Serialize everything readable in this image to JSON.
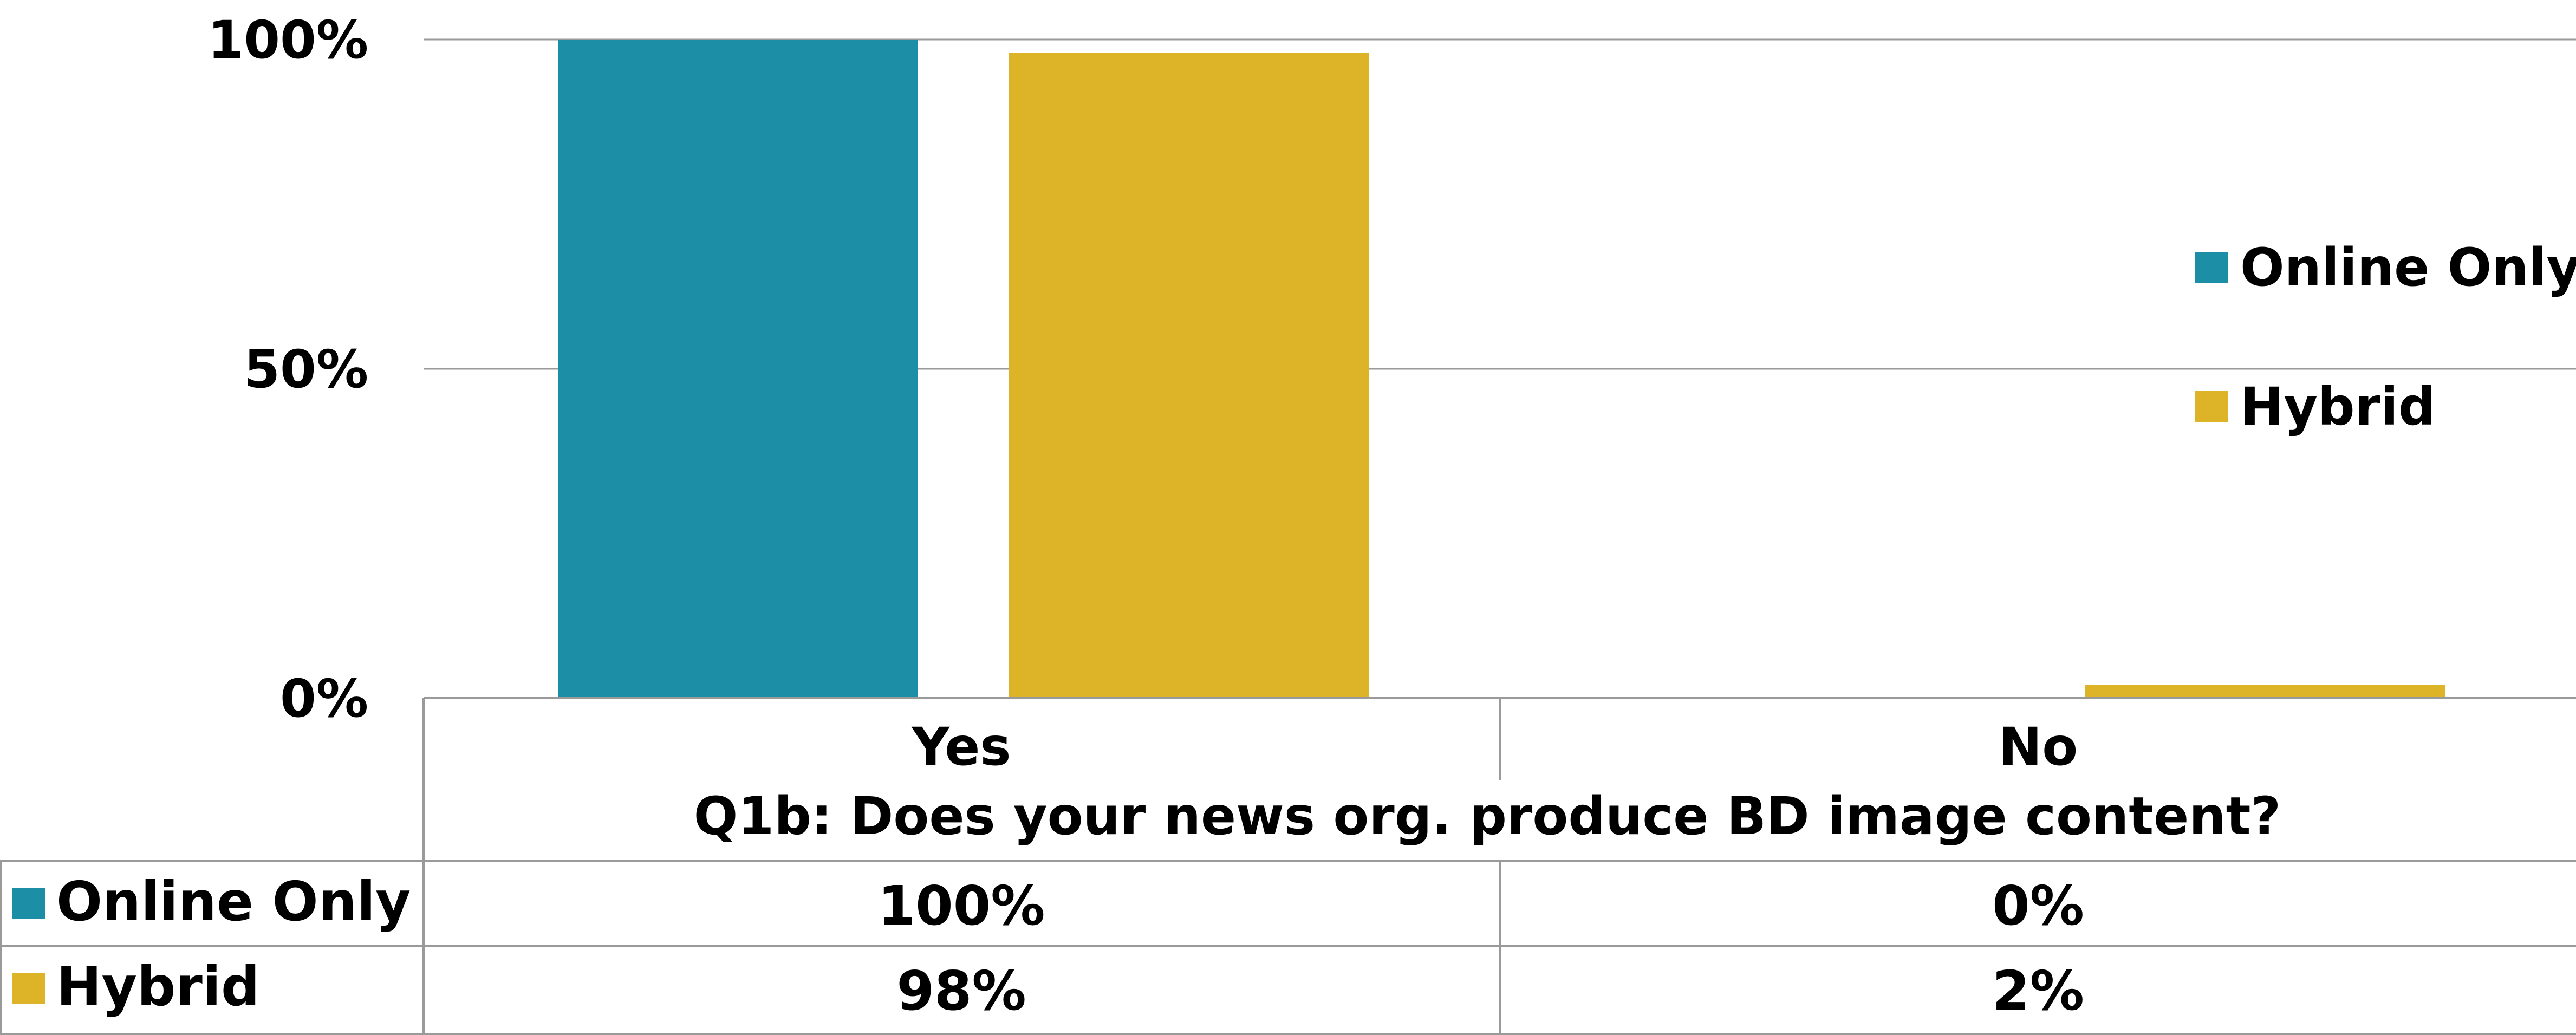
{
  "chart_data": {
    "type": "bar",
    "categories": [
      "Yes",
      "No"
    ],
    "series": [
      {
        "name": "Online Only",
        "values": [
          100,
          0
        ],
        "color": "#1c8ea6"
      },
      {
        "name": "Hybrid",
        "values": [
          98,
          2
        ],
        "color": "#ddb327"
      }
    ],
    "xlabel": "Q1b: Does your news org. produce BD image content?",
    "ylabel": "",
    "ylim": [
      0,
      100
    ],
    "yticks": [
      0,
      50,
      100
    ],
    "ytick_labels": [
      "0%",
      "50%",
      "100%"
    ],
    "grid": true,
    "legend": "right",
    "data_table": {
      "rows": [
        {
          "series": "Online Only",
          "cells": [
            "100%",
            "0%"
          ]
        },
        {
          "series": "Hybrid",
          "cells": [
            "98%",
            "2%"
          ]
        }
      ]
    }
  }
}
